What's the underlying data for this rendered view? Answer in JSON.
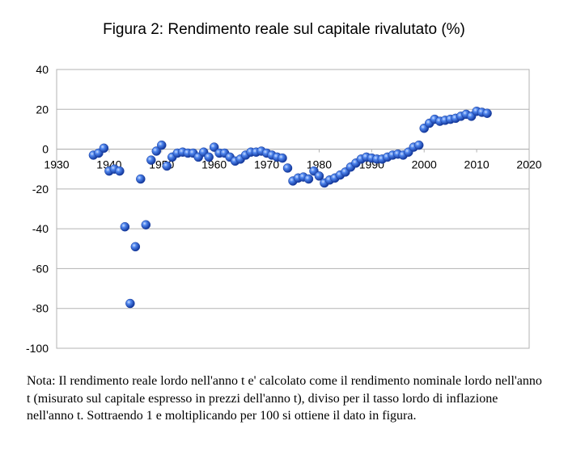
{
  "title": "Figura 2: Rendimento reale sul capitale rivalutato (%)",
  "note": "Nota: Il rendimento reale lordo nell'anno t e' calcolato come il rendimento nominale lordo nell'anno t (misurato sul capitale espresso in prezzi dell'anno t), diviso per il tasso lordo di inflazione nell'anno t. Sottraendo 1 e moltiplicando per 100 si ottiene il dato in figura.",
  "chart_data": {
    "type": "scatter",
    "title": "Figura 2: Rendimento reale sul capitale rivalutato (%)",
    "xlabel": "",
    "ylabel": "",
    "xlim": [
      1930,
      2020
    ],
    "ylim": [
      -100,
      40
    ],
    "x_ticks": [
      1930,
      1940,
      1950,
      1960,
      1970,
      1980,
      1990,
      2000,
      2010,
      2020
    ],
    "y_ticks": [
      40,
      20,
      0,
      -20,
      -40,
      -60,
      -80,
      -100
    ],
    "grid": "horizontal",
    "legend": "none",
    "marker_color": "#2a5fd0",
    "series": [
      {
        "points": [
          [
            1937,
            -3
          ],
          [
            1938,
            -2
          ],
          [
            1939,
            0.5
          ],
          [
            1940,
            -11
          ],
          [
            1941,
            -10
          ],
          [
            1942,
            -11
          ],
          [
            1943,
            -39
          ],
          [
            1944,
            -77.5
          ],
          [
            1945,
            -49
          ],
          [
            1946,
            -15
          ],
          [
            1947,
            -38
          ],
          [
            1948,
            -5.5
          ],
          [
            1949,
            -1
          ],
          [
            1950,
            2
          ],
          [
            1951,
            -8.5
          ],
          [
            1952,
            -4
          ],
          [
            1953,
            -2
          ],
          [
            1954,
            -1.5
          ],
          [
            1955,
            -2
          ],
          [
            1956,
            -2
          ],
          [
            1957,
            -4
          ],
          [
            1958,
            -1.5
          ],
          [
            1959,
            -4
          ],
          [
            1960,
            1
          ],
          [
            1961,
            -2
          ],
          [
            1962,
            -2
          ],
          [
            1963,
            -4
          ],
          [
            1964,
            -6
          ],
          [
            1965,
            -5
          ],
          [
            1966,
            -3
          ],
          [
            1967,
            -1.5
          ],
          [
            1968,
            -1.5
          ],
          [
            1969,
            -1
          ],
          [
            1970,
            -2
          ],
          [
            1971,
            -3
          ],
          [
            1972,
            -4
          ],
          [
            1973,
            -4.5
          ],
          [
            1974,
            -9.5
          ],
          [
            1975,
            -16
          ],
          [
            1976,
            -14.5
          ],
          [
            1977,
            -14
          ],
          [
            1978,
            -15
          ],
          [
            1979,
            -11
          ],
          [
            1980,
            -13.5
          ],
          [
            1981,
            -17
          ],
          [
            1982,
            -15.5
          ],
          [
            1983,
            -14.5
          ],
          [
            1984,
            -13
          ],
          [
            1985,
            -11.5
          ],
          [
            1986,
            -9
          ],
          [
            1987,
            -7
          ],
          [
            1988,
            -5
          ],
          [
            1989,
            -4
          ],
          [
            1990,
            -4.5
          ],
          [
            1991,
            -5
          ],
          [
            1992,
            -5
          ],
          [
            1993,
            -4
          ],
          [
            1994,
            -3
          ],
          [
            1995,
            -2.5
          ],
          [
            1996,
            -3
          ],
          [
            1997,
            -1.5
          ],
          [
            1998,
            1
          ],
          [
            1999,
            2
          ],
          [
            2000,
            10.5
          ],
          [
            2001,
            13
          ],
          [
            2002,
            15
          ],
          [
            2003,
            14
          ],
          [
            2004,
            14.5
          ],
          [
            2005,
            15
          ],
          [
            2006,
            15.5
          ],
          [
            2007,
            16.5
          ],
          [
            2008,
            17.5
          ],
          [
            2009,
            16.5
          ],
          [
            2010,
            19
          ],
          [
            2011,
            18.5
          ],
          [
            2012,
            18
          ]
        ]
      }
    ]
  }
}
